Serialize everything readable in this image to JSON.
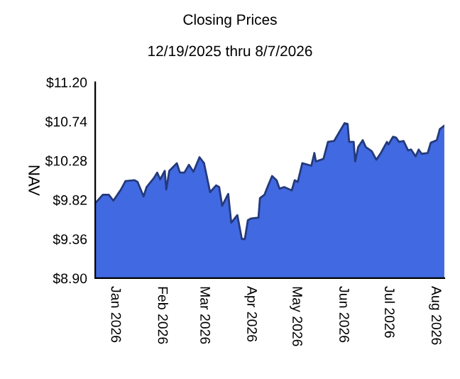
{
  "chart_data": {
    "type": "area",
    "title": "Closing Prices",
    "subtitle": "12/19/2025 thru 8/7/2026",
    "ylabel": "NAV",
    "x": [
      "2025-12-19",
      "2025-12-24",
      "2025-12-28",
      "2025-12-31",
      "2026-01-05",
      "2026-01-08",
      "2026-01-14",
      "2026-01-16",
      "2026-01-20",
      "2026-01-22",
      "2026-01-27",
      "2026-01-29",
      "2026-01-31",
      "2026-02-03",
      "2026-02-04",
      "2026-02-06",
      "2026-02-11",
      "2026-02-13",
      "2026-02-16",
      "2026-02-19",
      "2026-02-22",
      "2026-02-26",
      "2026-03-01",
      "2026-03-03",
      "2026-03-05",
      "2026-03-09",
      "2026-03-11",
      "2026-03-13",
      "2026-03-17",
      "2026-03-19",
      "2026-03-23",
      "2026-03-24",
      "2026-03-26",
      "2026-03-28",
      "2026-03-30",
      "2026-04-01",
      "2026-04-06",
      "2026-04-07",
      "2026-04-10",
      "2026-04-12",
      "2026-04-15",
      "2026-04-18",
      "2026-04-20",
      "2026-04-23",
      "2026-04-28",
      "2026-04-30",
      "2026-05-02",
      "2026-05-05",
      "2026-05-11",
      "2026-05-13",
      "2026-05-14",
      "2026-05-19",
      "2026-05-22",
      "2026-05-26",
      "2026-05-30",
      "2026-06-02",
      "2026-06-04",
      "2026-06-05",
      "2026-06-08",
      "2026-06-09",
      "2026-06-11",
      "2026-06-14",
      "2026-06-16",
      "2026-06-20",
      "2026-06-23",
      "2026-06-26",
      "2026-06-30",
      "2026-07-01",
      "2026-07-04",
      "2026-07-06",
      "2026-07-08",
      "2026-07-11",
      "2026-07-14",
      "2026-07-16",
      "2026-07-19",
      "2026-07-21",
      "2026-07-23",
      "2026-07-27",
      "2026-07-29",
      "2026-08-02",
      "2026-08-04",
      "2026-08-07"
    ],
    "series": [
      {
        "color": "#4169e1",
        "values": [
          9.78,
          9.88,
          9.88,
          9.81,
          9.94,
          10.04,
          10.05,
          10.03,
          9.86,
          9.97,
          10.08,
          10.14,
          10.06,
          10.16,
          9.94,
          10.16,
          10.25,
          10.14,
          10.14,
          10.23,
          10.15,
          10.32,
          10.25,
          10.08,
          9.91,
          9.99,
          9.97,
          9.75,
          9.89,
          9.55,
          9.64,
          9.55,
          9.36,
          9.36,
          9.58,
          9.6,
          9.61,
          9.84,
          9.88,
          9.97,
          10.1,
          10.05,
          9.95,
          9.97,
          9.93,
          10.05,
          10.03,
          10.25,
          10.22,
          10.37,
          10.27,
          10.3,
          10.5,
          10.51,
          10.63,
          10.72,
          10.71,
          10.5,
          10.5,
          10.27,
          10.44,
          10.52,
          10.44,
          10.39,
          10.29,
          10.37,
          10.5,
          10.47,
          10.56,
          10.55,
          10.5,
          10.51,
          10.4,
          10.41,
          10.33,
          10.41,
          10.36,
          10.37,
          10.49,
          10.52,
          10.65,
          10.69
        ]
      }
    ],
    "xlim": [
      "2025-12-19",
      "2026-08-07"
    ],
    "xticks": [
      {
        "value": "2026-01-01",
        "label": "Jan 2026"
      },
      {
        "value": "2026-02-01",
        "label": "Feb 2026"
      },
      {
        "value": "2026-03-01",
        "label": "Mar 2026"
      },
      {
        "value": "2026-04-01",
        "label": "Apr 2026"
      },
      {
        "value": "2026-05-01",
        "label": "May 2026"
      },
      {
        "value": "2026-06-01",
        "label": "Jun 2026"
      },
      {
        "value": "2026-07-01",
        "label": "Jul 2026"
      },
      {
        "value": "2026-08-01",
        "label": "Aug 2026"
      }
    ],
    "ylim": [
      8.9,
      11.2
    ],
    "yticks": [
      {
        "value": 8.9,
        "label": "$8.90"
      },
      {
        "value": 9.36,
        "label": "$9.36"
      },
      {
        "value": 9.82,
        "label": "$9.82"
      },
      {
        "value": 10.28,
        "label": "$10.28"
      },
      {
        "value": 10.74,
        "label": "$10.74"
      },
      {
        "value": 11.2,
        "label": "$11.20"
      }
    ],
    "grid": false,
    "legend": false
  }
}
